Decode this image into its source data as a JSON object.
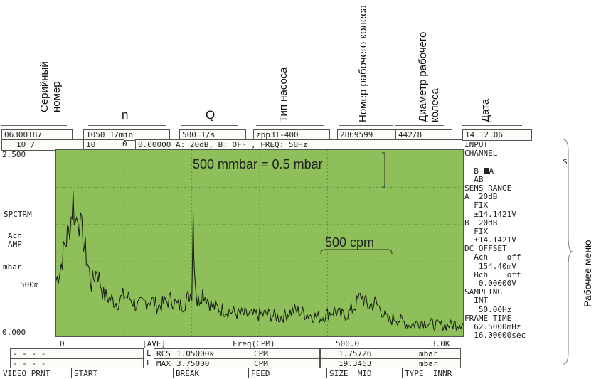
{
  "annotations": {
    "serial": "Серийный номер",
    "n": "n",
    "q": "Q",
    "pump_type": "Тип насоса",
    "impeller_no": "Номер рабочего колеса",
    "impeller_dia": "Диаметр рабочего колеса",
    "date": "Дата",
    "work_menu": "Рабочее меню"
  },
  "header": {
    "serial_value": "06300187",
    "speed_value": "1050 1/min",
    "flow_value": "500 1/s",
    "pump_value": "zpp31-400",
    "impeller_no_value": "2869599",
    "impeller_dia_value": "442/8",
    "date_value": "14.12.06",
    "row2_avg": "10 /",
    "row2_count": "10",
    "row2_zero": "0",
    "row2_status": "0.00000  A: 20dB, B: OFF , FREQ:   50Hz"
  },
  "plot": {
    "y_top": "2.500",
    "y_bottom": "0.000",
    "y_500m": "500m",
    "side_spctrm": "SPCTRM",
    "side_ach": "Ach",
    "side_amp": "AMP",
    "side_mbar": "mbar",
    "annot_mbar": "500 mmbar = 0.5 mbar",
    "annot_cpm": "500 cpm",
    "x_start": "0",
    "x_ave": "[AVE]",
    "x_freq": "Freq(CPM)",
    "x_mid": "500.0",
    "x_end": "3.0K"
  },
  "menu": {
    "items": [
      "INPUT",
      "CHANNEL",
      "A",
      "  B",
      "  AB",
      "SENS RANGE",
      "A  20dB",
      "  FIX",
      "  ±14.1421V",
      "B  20dB",
      "  FIX",
      "  ±14.1421V",
      "DC OFFSET",
      "  Ach    off",
      "   154.40mV",
      "  Bch    off",
      "   0.00000V",
      "SAMPLING",
      "  INT",
      "   50.00Hz",
      "FRAME TIME",
      "  62.5000mHz",
      "  16.00000sec"
    ],
    "dollar": "$"
  },
  "readouts": {
    "dash1": "- - - -",
    "dash2": "- - - -",
    "l1": "L",
    "l2": "L",
    "rcs_label": "RCS",
    "rcs_value": "1.05000k",
    "rcs_unit": "CPM",
    "rcs_amp": "1.75726",
    "rcs_amp_unit": "mbar",
    "max_label": "MAX",
    "max_value": "3.75000",
    "max_unit": "CPM",
    "max_amp": "19.3463",
    "max_amp_unit": "mbar"
  },
  "function_keys": [
    "VIDEO PRNT",
    "START",
    "BREAK",
    "FEED",
    "SIZE  MID",
    "TYPE  INNR"
  ],
  "chart_data": {
    "type": "line",
    "title": "",
    "xlabel": "Freq(CPM)",
    "ylabel": "mbar",
    "xlim": [
      0,
      3000
    ],
    "ylim": [
      0,
      2.5
    ],
    "grid": true,
    "series": [
      {
        "values_x": [
          0,
          30,
          60,
          90,
          110,
          125,
          140,
          160,
          180,
          200,
          230,
          260,
          300,
          350,
          400,
          450,
          500,
          550,
          600,
          650,
          700,
          750,
          800,
          850,
          900,
          950,
          980,
          1000,
          1010,
          1020,
          1040,
          1080,
          1150,
          1250,
          1350,
          1450,
          1550,
          1650,
          1750,
          1850,
          1950,
          2000,
          2050,
          2100,
          2150,
          2200,
          2250,
          2300,
          2350,
          2400,
          2450,
          2500,
          2600,
          2700,
          2800,
          2900,
          3000
        ],
        "values_y": [
          0.75,
          0.9,
          1.2,
          1.4,
          1.6,
          1.85,
          1.5,
          1.7,
          1.45,
          1.3,
          1.0,
          0.7,
          0.9,
          0.55,
          0.5,
          0.45,
          0.55,
          0.5,
          0.4,
          0.45,
          0.5,
          0.4,
          0.45,
          0.5,
          0.4,
          0.45,
          0.55,
          0.6,
          1.65,
          0.9,
          0.45,
          0.6,
          0.4,
          0.35,
          0.3,
          0.28,
          0.3,
          0.25,
          0.35,
          0.3,
          0.25,
          0.3,
          0.35,
          0.28,
          0.3,
          0.4,
          0.55,
          0.4,
          0.45,
          0.35,
          0.2,
          0.25,
          0.15,
          0.2,
          0.15,
          0.15,
          0.18
        ]
      }
    ]
  }
}
